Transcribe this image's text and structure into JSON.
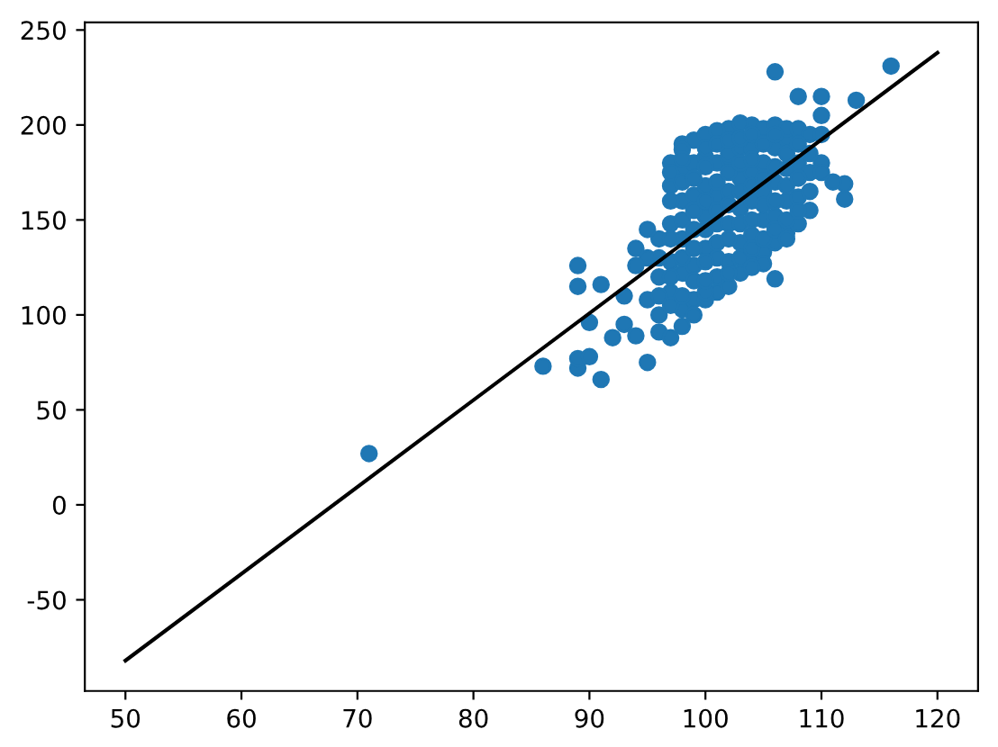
{
  "chart_data": {
    "type": "scatter",
    "xlim": [
      46.5,
      123.5
    ],
    "ylim": [
      -98,
      254
    ],
    "xticks": [
      50,
      60,
      70,
      80,
      90,
      100,
      110,
      120
    ],
    "yticks": [
      -50,
      0,
      50,
      100,
      150,
      200,
      250
    ],
    "grid": false,
    "legend": false,
    "series": [
      {
        "color": "#1f77b4",
        "marker": "circle",
        "x": [
          97,
          97,
          97,
          97,
          97,
          98,
          98,
          98,
          98,
          98,
          98,
          99,
          99,
          99,
          99,
          99,
          99,
          100,
          100,
          100,
          100,
          100,
          101,
          101,
          101,
          101,
          101,
          102,
          102,
          102,
          102,
          102,
          102,
          103,
          103,
          103,
          103,
          103,
          104,
          104,
          104,
          104,
          104,
          104,
          105,
          105,
          105,
          105,
          105,
          106,
          106,
          106,
          106,
          106,
          107,
          107,
          107,
          107,
          107,
          108,
          108,
          108,
          108,
          109,
          109,
          109,
          110,
          110,
          96,
          96,
          96,
          95,
          95,
          93,
          93,
          71,
          86,
          89,
          89,
          89,
          89,
          90,
          90,
          91,
          91,
          92,
          94,
          94,
          94,
          95,
          95,
          96,
          97,
          98,
          100,
          102,
          106,
          105,
          112,
          112,
          113,
          110,
          108,
          106,
          116,
          103,
          101,
          98,
          97,
          97,
          97,
          97,
          97,
          98,
          98,
          98,
          98,
          98,
          99,
          99,
          99,
          99,
          99,
          100,
          100,
          100,
          100,
          100,
          100,
          101,
          101,
          101,
          101,
          101,
          102,
          102,
          102,
          102,
          102,
          103,
          103,
          103,
          103,
          103,
          104,
          104,
          104,
          104,
          104,
          105,
          105,
          105,
          105,
          106,
          106,
          106,
          106,
          107,
          107,
          107,
          108,
          108,
          108,
          109,
          109,
          110,
          110,
          96,
          96,
          100,
          104,
          107,
          111
        ],
        "values": [
          112,
          128,
          148,
          168,
          180,
          103,
          122,
          140,
          160,
          176,
          190,
          108,
          126,
          145,
          163,
          180,
          192,
          135,
          152,
          168,
          183,
          195,
          112,
          130,
          148,
          163,
          180,
          128,
          148,
          165,
          182,
          185,
          198,
          122,
          138,
          156,
          172,
          188,
          128,
          142,
          160,
          175,
          188,
          200,
          133,
          150,
          165,
          180,
          198,
          138,
          152,
          170,
          188,
          200,
          143,
          160,
          177,
          193,
          198,
          148,
          162,
          180,
          198,
          155,
          175,
          195,
          180,
          195,
          100,
          120,
          140,
          108,
          130,
          95,
          110,
          27,
          73,
          72,
          77,
          115,
          126,
          78,
          96,
          66,
          116,
          88,
          89,
          126,
          135,
          145,
          75,
          91,
          88,
          94,
          108,
          115,
          119,
          127,
          161,
          169,
          213,
          215,
          215,
          228,
          231,
          201,
          197,
          187,
          105,
          120,
          140,
          160,
          175,
          110,
          130,
          150,
          170,
          182,
          100,
          118,
          135,
          155,
          172,
          112,
          128,
          145,
          160,
          178,
          188,
          120,
          138,
          155,
          170,
          190,
          122,
          140,
          158,
          175,
          192,
          130,
          148,
          165,
          180,
          193,
          135,
          150,
          168,
          182,
          195,
          140,
          158,
          172,
          190,
          145,
          160,
          178,
          195,
          150,
          168,
          185,
          155,
          172,
          190,
          165,
          185,
          175,
          205,
          110,
          130,
          118,
          125,
          140,
          170
        ]
      },
      {
        "type": "line",
        "color": "#000000",
        "marker": "none",
        "line_style": "solid",
        "x": [
          50,
          120
        ],
        "values": [
          -82,
          238
        ]
      }
    ]
  }
}
